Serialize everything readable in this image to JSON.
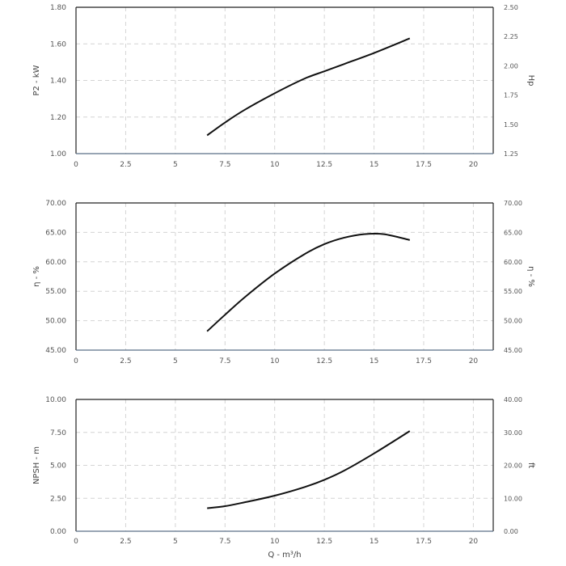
{
  "chart_data": [
    {
      "type": "line",
      "title": "",
      "xlabel": "",
      "ylabel": "P2 - kW",
      "y2label": "Hp",
      "xlim": [
        0,
        21
      ],
      "ylim": [
        1.0,
        1.8
      ],
      "y2lim": [
        1.25,
        2.5
      ],
      "x_ticks": [
        "0",
        "2.5",
        "5",
        "7.5",
        "10",
        "12.5",
        "15",
        "17.5",
        "20"
      ],
      "y_ticks": [
        "1.00",
        "1.20",
        "1.40",
        "1.60",
        "1.80"
      ],
      "y2_ticks": [
        "1.25",
        "1.50",
        "1.75",
        "2.00",
        "2.25",
        "2.50"
      ],
      "grid": true,
      "series": [
        {
          "x": [
            6.6,
            7.5,
            8.5,
            10,
            11.5,
            12.5,
            13.5,
            15,
            16.8
          ],
          "values": [
            1.1,
            1.17,
            1.24,
            1.33,
            1.41,
            1.45,
            1.49,
            1.55,
            1.63
          ]
        }
      ]
    },
    {
      "type": "line",
      "title": "",
      "xlabel": "",
      "ylabel": "η - %",
      "y2label": "η - %",
      "xlim": [
        0,
        21
      ],
      "ylim": [
        45,
        70
      ],
      "y2lim": [
        45,
        70
      ],
      "x_ticks": [
        "0",
        "2.5",
        "5",
        "7.5",
        "10",
        "12.5",
        "15",
        "17.5",
        "20"
      ],
      "y_ticks": [
        "45.00",
        "50.00",
        "55.00",
        "60.00",
        "65.00",
        "70.00"
      ],
      "y2_ticks": [
        "45.00",
        "50.00",
        "55.00",
        "60.00",
        "65.00",
        "70.00"
      ],
      "grid": true,
      "series": [
        {
          "x": [
            6.6,
            7.5,
            8.5,
            10,
            11.5,
            12.5,
            13.5,
            14.5,
            15.5,
            16.8
          ],
          "values": [
            48.2,
            51.0,
            54.0,
            58.0,
            61.3,
            63.0,
            64.1,
            64.7,
            64.7,
            63.7
          ]
        }
      ]
    },
    {
      "type": "line",
      "title": "",
      "xlabel": "Q - m³/h",
      "ylabel": "NPSH - m",
      "y2label": "ft",
      "xlim": [
        0,
        21
      ],
      "ylim": [
        0,
        10
      ],
      "y2lim": [
        0,
        40
      ],
      "x_ticks": [
        "0",
        "2.5",
        "5",
        "7.5",
        "10",
        "12.5",
        "15",
        "17.5",
        "20"
      ],
      "y_ticks": [
        "0.00",
        "2.50",
        "5.00",
        "7.50",
        "10.00"
      ],
      "y2_ticks": [
        "0.00",
        "10.00",
        "20.00",
        "30.00",
        "40.00"
      ],
      "grid": true,
      "series": [
        {
          "x": [
            6.6,
            7.5,
            8.5,
            10,
            11.5,
            12.5,
            13.5,
            15,
            16.8
          ],
          "values": [
            1.75,
            1.9,
            2.2,
            2.7,
            3.35,
            3.9,
            4.6,
            5.9,
            7.6
          ]
        }
      ]
    }
  ]
}
